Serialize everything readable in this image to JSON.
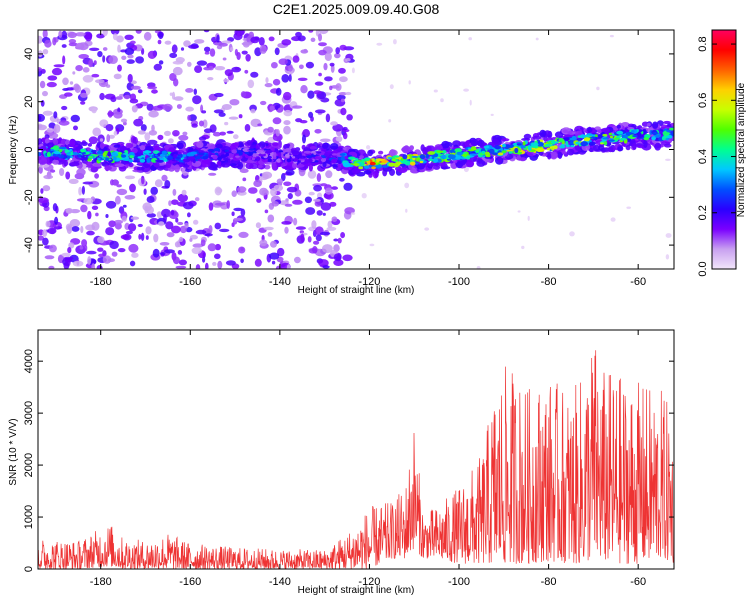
{
  "chart_data": [
    {
      "type": "heatmap",
      "title": "C2E1.2025.009.09.40.G08",
      "xlabel": "Height of straight line (km)",
      "ylabel": "Frequency (Hz)",
      "xlim": [
        -194,
        -52
      ],
      "ylim": [
        -50,
        50
      ],
      "x_ticks": [
        -180,
        -160,
        -140,
        -120,
        -100,
        -80,
        -60
      ],
      "y_ticks": [
        -40,
        -20,
        0,
        20,
        40
      ],
      "colorbar": {
        "label": "Normalized spectral amplitude",
        "range": [
          0,
          0.85
        ],
        "ticks": [
          0.0,
          0.2,
          0.4,
          0.6,
          0.8
        ],
        "tick_labels": [
          "0.0",
          "0.2",
          "0.4",
          "0.6",
          "0.8"
        ],
        "colors": [
          "#f2e6fa",
          "#c8a0f0",
          "#7a00ff",
          "#2a00ff",
          "#0050ff",
          "#00c8ff",
          "#00ff90",
          "#50ff00",
          "#c8ff00",
          "#ffd000",
          "#ff6000",
          "#ff0000",
          "#ff0060"
        ]
      },
      "series": [
        {
          "name": "carrier track (bright)",
          "x": [
            -194,
            -190,
            -185,
            -180,
            -175,
            -170,
            -165,
            -160,
            -155,
            -150,
            -145,
            -140,
            -135,
            -130,
            -126,
            -122,
            -120,
            -115,
            -110,
            -105,
            -100,
            -95,
            -90,
            -85,
            -80,
            -75,
            -70,
            -65,
            -60,
            -55,
            -52
          ],
          "y": [
            0,
            -1,
            -2,
            -3,
            -3,
            -3,
            -3,
            -3,
            -2,
            -2,
            -2,
            -3,
            -3,
            -3,
            -4,
            -6,
            -6,
            -5,
            -4,
            -3,
            -2,
            -1,
            0,
            1,
            2,
            3,
            4,
            5,
            6,
            6,
            7
          ],
          "amplitude": [
            0.35,
            0.45,
            0.4,
            0.5,
            0.45,
            0.4,
            0.45,
            0.3,
            0.25,
            0.25,
            0.2,
            0.2,
            0.2,
            0.25,
            0.3,
            0.8,
            0.75,
            0.55,
            0.6,
            0.55,
            0.5,
            0.5,
            0.55,
            0.6,
            0.55,
            0.5,
            0.55,
            0.5,
            0.45,
            0.4,
            0.45
          ]
        },
        {
          "name": "scattered noise band",
          "x_range": [
            -175,
            -124
          ],
          "y_range": [
            -50,
            50
          ],
          "amplitude": [
            0.05,
            0.2
          ]
        }
      ]
    },
    {
      "type": "line",
      "xlabel": "Height of straight line (km)",
      "ylabel": "SNR (10 * V/V)",
      "xlim": [
        -194,
        -52
      ],
      "ylim": [
        0,
        4600
      ],
      "x_ticks": [
        -180,
        -160,
        -140,
        -120,
        -100,
        -80,
        -60
      ],
      "y_ticks": [
        0,
        1000,
        2000,
        3000,
        4000
      ],
      "color": "#ee3333",
      "series": [
        {
          "name": "SNR",
          "envelope_x": [
            -194,
            -185,
            -178,
            -175,
            -170,
            -165,
            -160,
            -150,
            -140,
            -130,
            -125,
            -120,
            -115,
            -112,
            -110,
            -108,
            -105,
            -100,
            -95,
            -92,
            -90,
            -88,
            -85,
            -80,
            -75,
            -72,
            -70,
            -68,
            -65,
            -60,
            -55,
            -52
          ],
          "envelope_max": [
            600,
            550,
            900,
            600,
            550,
            700,
            500,
            420,
            380,
            380,
            700,
            1200,
            1300,
            1600,
            2850,
            1100,
            1200,
            1600,
            2200,
            3500,
            3900,
            3900,
            3500,
            3700,
            3400,
            3800,
            4600,
            3900,
            3800,
            3600,
            3500,
            3000
          ],
          "envelope_min": [
            0,
            0,
            50,
            0,
            0,
            0,
            0,
            0,
            0,
            0,
            0,
            0,
            200,
            200,
            400,
            200,
            200,
            100,
            100,
            100,
            100,
            100,
            100,
            150,
            100,
            100,
            200,
            150,
            100,
            100,
            200,
            100
          ]
        }
      ]
    }
  ]
}
